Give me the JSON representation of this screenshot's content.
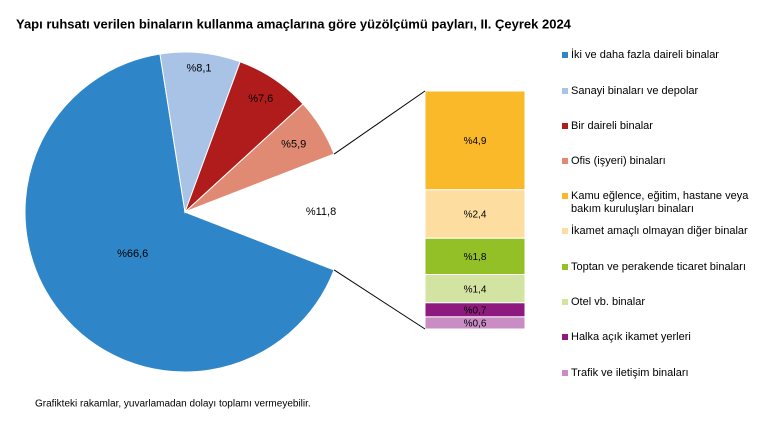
{
  "chart_data": {
    "type": "bar_of_pie",
    "title": "Yapı ruhsatı verilen binaların kullanma amaçlarına göre yüzölçümü payları, II. Çeyrek 2024",
    "note": "Grafikteki rakamlar, yuvarlamadan dolayı toplamı vermeyebilir.",
    "pie": {
      "categories": [
        "İki ve daha fazla daireli binalar",
        "Sanayi binaları ve depolar",
        "Bir daireli binalar",
        "Ofis (işyeri) binaları",
        null
      ],
      "values": [
        66.6,
        8.1,
        7.6,
        5.9,
        11.8
      ],
      "value_labels": [
        "%66,6",
        "%8,1",
        "%7,6",
        "%5,9",
        "%11,8"
      ],
      "colors": [
        "#2e86c8",
        "#a8c3e6",
        "#b01c1c",
        "#e08a73",
        "#ffffff"
      ]
    },
    "bar": {
      "categories": [
        "Kamu eğlence, eğitim, hastane veya bakım kuruluşları binaları",
        "İkamet amaçlı olmayan diğer binalar",
        "Toptan ve perakende ticaret binaları",
        "Otel vb. binalar",
        "Halka açık ikamet yerleri",
        "Trafik ve iletişim binaları"
      ],
      "values": [
        4.9,
        2.4,
        1.8,
        1.4,
        0.7,
        0.6
      ],
      "value_labels": [
        "%4,9",
        "%2,4",
        "%1,8",
        "%1,4",
        "%0,7",
        "%0,6"
      ],
      "colors": [
        "#f9b928",
        "#fddea0",
        "#92c026",
        "#d3e3a2",
        "#8e1a7f",
        "#c98cc4"
      ]
    }
  }
}
